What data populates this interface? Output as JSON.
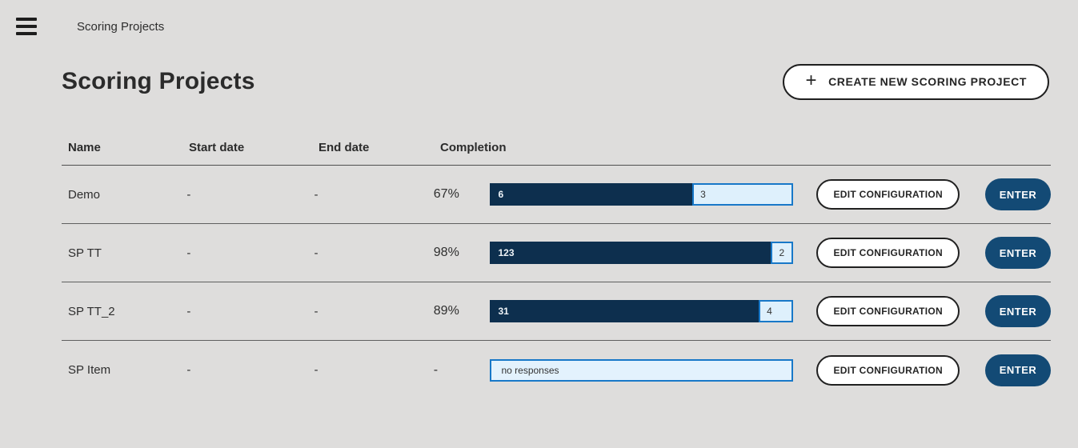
{
  "app_bar": {
    "title": "Scoring Projects",
    "menu_icon": "hamburger-icon"
  },
  "page": {
    "title": "Scoring Projects",
    "create_button_label": "CREATE NEW SCORING PROJECT",
    "create_button_icon": "plus-icon"
  },
  "row_actions": {
    "edit": "EDIT CONFIGURATION",
    "enter": "ENTER"
  },
  "table": {
    "columns": [
      "Name",
      "Start date",
      "End date",
      "Completion"
    ],
    "rows": [
      {
        "name": "Demo",
        "start_date": "-",
        "end_date": "-",
        "completion_pct": "67%",
        "bar": {
          "scored": 6,
          "remaining": 3
        }
      },
      {
        "name": "SP TT",
        "start_date": "-",
        "end_date": "-",
        "completion_pct": "98%",
        "bar": {
          "scored": 123,
          "remaining": 2
        }
      },
      {
        "name": "SP TT_2",
        "start_date": "-",
        "end_date": "-",
        "completion_pct": "89%",
        "bar": {
          "scored": 31,
          "remaining": 4
        }
      },
      {
        "name": "SP Item",
        "start_date": "-",
        "end_date": "-",
        "completion_pct": "-",
        "bar": {
          "empty_label": "no responses"
        }
      }
    ]
  },
  "colors": {
    "background": "#dedddc",
    "bar_dark_navy": "#0d2f4e",
    "bar_light_fill": "#def0fc",
    "bar_blue_border": "#1878c8",
    "enter_button_navy": "#134a75",
    "text_dark": "#2e2e2e",
    "row_separator": "#5f5f5f"
  }
}
